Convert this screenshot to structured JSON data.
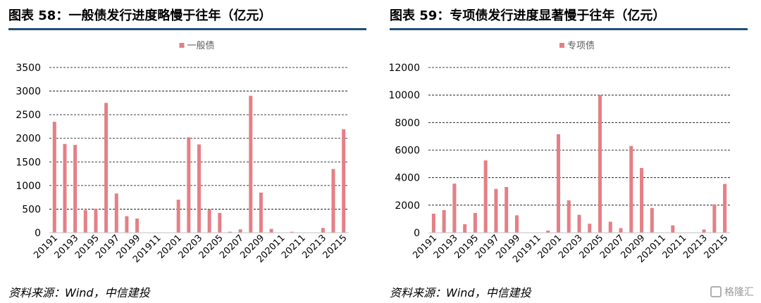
{
  "left": {
    "title": "图表 58：一般债发行进度略慢于往年（亿元）",
    "source": "资料来源：Wind，中信建投",
    "chart_data": {
      "type": "bar",
      "legend": [
        "一般债"
      ],
      "legend_position": "top",
      "grid": true,
      "color": "#e57f86",
      "ylim": [
        0,
        3500
      ],
      "yticks": [
        0,
        500,
        1000,
        1500,
        2000,
        2500,
        3000,
        3500
      ],
      "categories": [
        "20191",
        "20192",
        "20193",
        "20194",
        "20195",
        "20196",
        "20197",
        "20198",
        "20199",
        "201910",
        "201911",
        "201912",
        "20201",
        "20202",
        "20203",
        "20204",
        "20205",
        "20206",
        "20207",
        "20208",
        "20209",
        "202010",
        "202011",
        "202012",
        "20211",
        "20212",
        "20213",
        "20214",
        "20215"
      ],
      "xtick_labels": [
        "20191",
        "20193",
        "20195",
        "20197",
        "20199",
        "201911",
        "20201",
        "20203",
        "20205",
        "20207",
        "20209",
        "202011",
        "20211",
        "20213",
        "20215"
      ],
      "series": [
        {
          "name": "一般债",
          "values": [
            2350,
            1880,
            1860,
            480,
            510,
            2750,
            830,
            350,
            300,
            0,
            0,
            0,
            700,
            2020,
            1870,
            500,
            420,
            20,
            70,
            2900,
            850,
            80,
            0,
            20,
            0,
            0,
            100,
            1350,
            2190
          ]
        }
      ]
    }
  },
  "right": {
    "title": "图表 59：专项债发行进度显著慢于往年（亿元）",
    "source": "资料来源：Wind，中信建投",
    "chart_data": {
      "type": "bar",
      "legend": [
        "专项债"
      ],
      "legend_position": "top",
      "grid": true,
      "color": "#e57f86",
      "ylim": [
        0,
        12000
      ],
      "yticks": [
        0,
        2000,
        4000,
        6000,
        8000,
        10000,
        12000
      ],
      "categories": [
        "20191",
        "20192",
        "20193",
        "20194",
        "20195",
        "20196",
        "20197",
        "20198",
        "20199",
        "201910",
        "201911",
        "201912",
        "20201",
        "20202",
        "20203",
        "20204",
        "20205",
        "20206",
        "20207",
        "20208",
        "20209",
        "202010",
        "202011",
        "202012",
        "20211",
        "20212",
        "20213",
        "20214",
        "20215"
      ],
      "xtick_labels": [
        "20191",
        "20193",
        "20195",
        "20197",
        "20199",
        "201911",
        "20201",
        "20203",
        "20205",
        "20207",
        "20209",
        "202011",
        "20211",
        "20213",
        "20215"
      ],
      "series": [
        {
          "name": "专项债",
          "values": [
            1380,
            1640,
            3560,
            620,
            1430,
            5250,
            3180,
            3320,
            1260,
            0,
            0,
            150,
            7150,
            2350,
            1300,
            650,
            10000,
            800,
            330,
            6300,
            4700,
            1800,
            0,
            530,
            0,
            0,
            230,
            2060,
            3540
          ]
        }
      ]
    }
  },
  "watermark": {
    "text": "格隆汇",
    "icon": "gelonghui-logo-icon"
  }
}
